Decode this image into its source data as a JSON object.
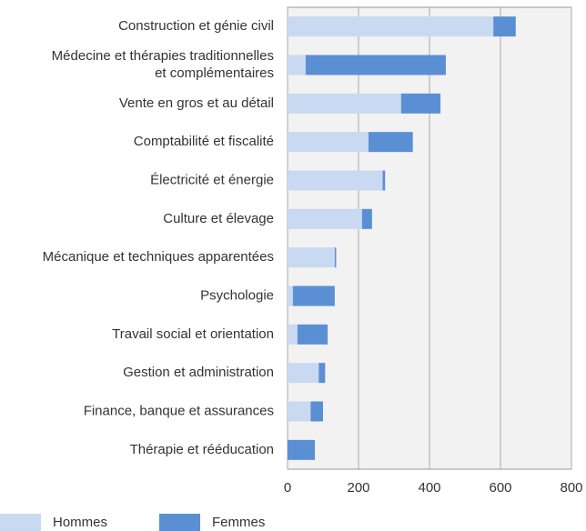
{
  "chart_data": {
    "type": "stacked-barh",
    "categories": [
      "Construction et génie civil",
      "Médecine et thérapies traditionnelles\net complémentaires",
      "Vente en gros et au détail",
      "Comptabilité et fiscalité",
      "Électricité et énergie",
      "Culture et élevage",
      "Mécanique et techniques apparentées",
      "Psychologie",
      "Travail social et orientation",
      "Gestion et administration",
      "Finance, banque et assurances",
      "Thérapie et rééducation"
    ],
    "series": [
      {
        "name": "Hommes",
        "color": "#c9d9f2",
        "values": [
          580,
          51,
          320,
          228,
          268,
          210,
          133,
          15,
          28,
          88,
          65,
          0
        ]
      },
      {
        "name": "Femmes",
        "color": "#5b8fd4",
        "values": [
          63,
          395,
          111,
          125,
          7,
          28,
          4,
          118,
          85,
          18,
          35,
          77
        ]
      }
    ],
    "xlim": [
      0,
      800
    ],
    "xticks": [
      0,
      200,
      400,
      600,
      800
    ],
    "grid": true
  }
}
